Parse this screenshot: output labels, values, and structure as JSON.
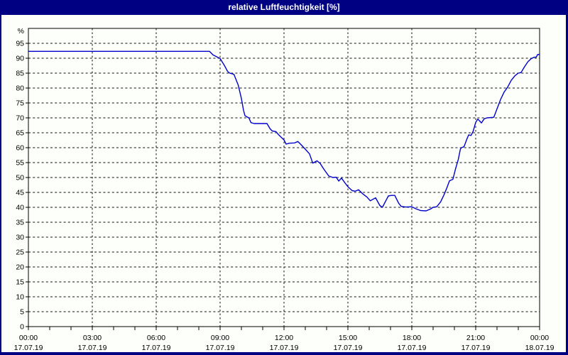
{
  "title": "relative Luftfeuchtigkeit [%]",
  "colors": {
    "title_bar": "#000082",
    "title_text": "#ffffff",
    "background": "#fdfffb",
    "line": "#0000cc",
    "grid": "#111111",
    "axis": "#000000",
    "tick_text": "#000000"
  },
  "chart_data": {
    "type": "line",
    "title": "relative Luftfeuchtigkeit [%]",
    "y_unit": "%",
    "ylim": [
      0,
      100
    ],
    "y_ticks": [
      0,
      5,
      10,
      15,
      20,
      25,
      30,
      35,
      40,
      45,
      50,
      55,
      60,
      65,
      70,
      75,
      80,
      85,
      90,
      95
    ],
    "x_range_hours": [
      0,
      24
    ],
    "x_minor_tick_every_hours": 1,
    "x_gridline_hours": [
      3,
      6,
      9,
      12,
      15,
      18,
      21
    ],
    "x_major_ticks": [
      {
        "hour": 0,
        "time": "00:00",
        "date": "17.07.19"
      },
      {
        "hour": 3,
        "time": "03:00",
        "date": "17.07.19"
      },
      {
        "hour": 6,
        "time": "06:00",
        "date": "17.07.19"
      },
      {
        "hour": 9,
        "time": "09:00",
        "date": "17.07.19"
      },
      {
        "hour": 12,
        "time": "12:00",
        "date": "17.07.19"
      },
      {
        "hour": 15,
        "time": "15:00",
        "date": "17.07.19"
      },
      {
        "hour": 18,
        "time": "18:00",
        "date": "17.07.19"
      },
      {
        "hour": 21,
        "time": "21:00",
        "date": "17.07.19"
      },
      {
        "hour": 24,
        "time": "00:00",
        "date": "18.07.19"
      }
    ],
    "grid": "dashed",
    "legend": "none",
    "series": [
      {
        "name": "relative Luftfeuchtigkeit",
        "color": "#0000cc",
        "points": [
          [
            0,
            92.3
          ],
          [
            8.5,
            92.3
          ],
          [
            8.67,
            91.1
          ],
          [
            9,
            89.9
          ],
          [
            9.2,
            87.6
          ],
          [
            9.35,
            85.6
          ],
          [
            9.45,
            85
          ],
          [
            9.65,
            84.6
          ],
          [
            9.85,
            81
          ],
          [
            10,
            76.5
          ],
          [
            10.1,
            72.5
          ],
          [
            10.17,
            70.7
          ],
          [
            10.35,
            70
          ],
          [
            10.45,
            68.4
          ],
          [
            10.6,
            68.1
          ],
          [
            11.2,
            68.1
          ],
          [
            11.35,
            66.3
          ],
          [
            11.45,
            65.6
          ],
          [
            11.62,
            65.4
          ],
          [
            11.75,
            64.3
          ],
          [
            12,
            62.6
          ],
          [
            12.1,
            61.2
          ],
          [
            12.25,
            61.5
          ],
          [
            12.5,
            61.6
          ],
          [
            12.65,
            62.1
          ],
          [
            12.8,
            61
          ],
          [
            13,
            59.5
          ],
          [
            13.2,
            57.9
          ],
          [
            13.35,
            54.8
          ],
          [
            13.55,
            55.6
          ],
          [
            13.7,
            54.7
          ],
          [
            13.85,
            53
          ],
          [
            14.1,
            50.5
          ],
          [
            14.3,
            50
          ],
          [
            14.45,
            50.1
          ],
          [
            14.57,
            48.8
          ],
          [
            14.7,
            49.8
          ],
          [
            14.82,
            48.6
          ],
          [
            15,
            46.9
          ],
          [
            15.2,
            45.6
          ],
          [
            15.35,
            45.4
          ],
          [
            15.5,
            45.9
          ],
          [
            15.7,
            44.5
          ],
          [
            15.9,
            43.4
          ],
          [
            16.05,
            42.2
          ],
          [
            16.3,
            43.2
          ],
          [
            16.5,
            40.6
          ],
          [
            16.62,
            40
          ],
          [
            16.78,
            42.2
          ],
          [
            16.9,
            43.8
          ],
          [
            17.05,
            44
          ],
          [
            17.2,
            44
          ],
          [
            17.38,
            41.4
          ],
          [
            17.5,
            40.3
          ],
          [
            17.72,
            40.1
          ],
          [
            18,
            40.2
          ],
          [
            18.2,
            39.5
          ],
          [
            18.42,
            38.9
          ],
          [
            18.67,
            38.8
          ],
          [
            18.87,
            39.4
          ],
          [
            19,
            40
          ],
          [
            19.17,
            40.2
          ],
          [
            19.35,
            41.8
          ],
          [
            19.5,
            44
          ],
          [
            19.65,
            46.6
          ],
          [
            19.77,
            48.9
          ],
          [
            19.93,
            49.4
          ],
          [
            20.05,
            52.8
          ],
          [
            20.18,
            56
          ],
          [
            20.28,
            59.5
          ],
          [
            20.33,
            60
          ],
          [
            20.45,
            60.3
          ],
          [
            20.57,
            62.6
          ],
          [
            20.67,
            64.3
          ],
          [
            20.78,
            64.1
          ],
          [
            20.88,
            65.5
          ],
          [
            21,
            68.5
          ],
          [
            21.1,
            69.6
          ],
          [
            21.27,
            68.3
          ],
          [
            21.4,
            69.7
          ],
          [
            21.53,
            70
          ],
          [
            21.85,
            70.2
          ],
          [
            22,
            73
          ],
          [
            22.17,
            76.2
          ],
          [
            22.33,
            78.6
          ],
          [
            22.5,
            80.3
          ],
          [
            22.67,
            82.6
          ],
          [
            22.85,
            84.2
          ],
          [
            23,
            85
          ],
          [
            23.13,
            85.2
          ],
          [
            23.28,
            87
          ],
          [
            23.45,
            88.8
          ],
          [
            23.6,
            89.8
          ],
          [
            23.73,
            90.3
          ],
          [
            23.85,
            90.4
          ],
          [
            23.9,
            91.2
          ],
          [
            24,
            91.3
          ]
        ]
      }
    ]
  }
}
